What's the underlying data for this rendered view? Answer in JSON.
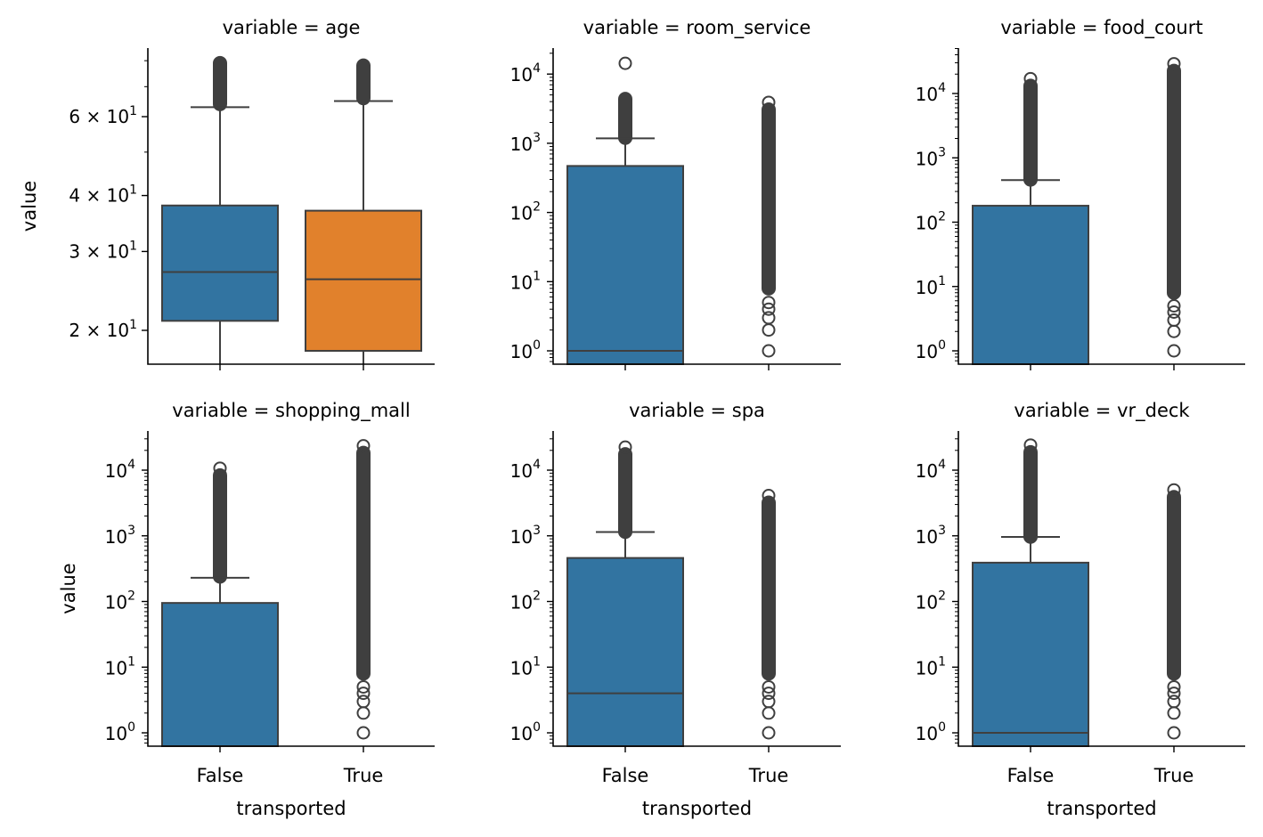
{
  "figure": {
    "xlabel": "transported",
    "ylabel": "value",
    "categories": [
      "False",
      "True"
    ],
    "palette": {
      "False": "#3274a1",
      "True": "#e1812c",
      "outline": "#3f3f3f"
    }
  },
  "chart_data": [
    {
      "type": "box",
      "title": "variable = age",
      "yscale": "log",
      "ylabel": "value",
      "xlabel": "",
      "categories": [
        "False",
        "True"
      ],
      "ytick_labels": [
        "2 × 10¹",
        "3 × 10¹",
        "4 × 10¹",
        "6 × 10¹"
      ],
      "ylim": [
        17,
        82
      ],
      "series": [
        {
          "name": "False",
          "color": "#3274a1",
          "q1": 21,
          "median": 27,
          "q3": 38,
          "whisker_low": 17,
          "whisker_high": 63,
          "fliers_range": [
            64,
            79
          ]
        },
        {
          "name": "True",
          "color": "#e1812c",
          "q1": 18,
          "median": 26,
          "q3": 37,
          "whisker_low": 17,
          "whisker_high": 65,
          "fliers_range": [
            66,
            78
          ]
        }
      ]
    },
    {
      "type": "box",
      "title": "variable = room_service",
      "yscale": "log",
      "categories": [
        "False",
        "True"
      ],
      "ytick_labels": [
        "10⁰",
        "10¹",
        "10²",
        "10³",
        "10⁴"
      ],
      "ylim": [
        0.6,
        22000
      ],
      "series": [
        {
          "name": "False",
          "color": "#3274a1",
          "q1": 0,
          "median": 1,
          "q3": 470,
          "whisker_high": 1180,
          "fliers_range": [
            1200,
            14300
          ]
        },
        {
          "name": "True",
          "color": "#e1812c",
          "q1": 0,
          "median": 0,
          "q3": 0,
          "whisker_high": 0,
          "fliers_range": [
            1,
            3900
          ]
        }
      ]
    },
    {
      "type": "box",
      "title": "variable = food_court",
      "yscale": "log",
      "categories": [
        "False",
        "True"
      ],
      "ytick_labels": [
        "10⁰",
        "10¹",
        "10²",
        "10³",
        "10⁴"
      ],
      "ylim": [
        0.6,
        50000
      ],
      "series": [
        {
          "name": "False",
          "color": "#3274a1",
          "q1": 0,
          "median": 0,
          "q3": 180,
          "whisker_high": 450,
          "fliers_range": [
            460,
            17000
          ]
        },
        {
          "name": "True",
          "color": "#e1812c",
          "q1": 0,
          "median": 0,
          "q3": 0,
          "whisker_high": 0,
          "fliers_range": [
            1,
            29000
          ]
        }
      ]
    },
    {
      "type": "box",
      "title": "variable = shopping_mall",
      "yscale": "log",
      "ylabel": "value",
      "xlabel": "transported",
      "categories": [
        "False",
        "True"
      ],
      "ytick_labels": [
        "10⁰",
        "10¹",
        "10²",
        "10³",
        "10⁴"
      ],
      "ylim": [
        0.6,
        35000
      ],
      "series": [
        {
          "name": "False",
          "color": "#3274a1",
          "q1": 0,
          "median": 0,
          "q3": 95,
          "whisker_high": 230,
          "fliers_range": [
            240,
            10700
          ]
        },
        {
          "name": "True",
          "color": "#e1812c",
          "q1": 0,
          "median": 0,
          "q3": 0,
          "whisker_high": 0,
          "fliers_range": [
            1,
            23500
          ]
        }
      ]
    },
    {
      "type": "box",
      "title": "variable = spa",
      "yscale": "log",
      "xlabel": "transported",
      "categories": [
        "False",
        "True"
      ],
      "ytick_labels": [
        "10⁰",
        "10¹",
        "10²",
        "10³",
        "10⁴"
      ],
      "ylim": [
        0.6,
        35000
      ],
      "series": [
        {
          "name": "False",
          "color": "#3274a1",
          "q1": 0,
          "median": 4,
          "q3": 460,
          "whisker_high": 1140,
          "fliers_range": [
            1150,
            22400
          ]
        },
        {
          "name": "True",
          "color": "#e1812c",
          "q1": 0,
          "median": 0,
          "q3": 0,
          "whisker_high": 0,
          "fliers_range": [
            1,
            4100
          ]
        }
      ]
    },
    {
      "type": "box",
      "title": "variable = vr_deck",
      "yscale": "log",
      "xlabel": "transported",
      "categories": [
        "False",
        "True"
      ],
      "ytick_labels": [
        "10⁰",
        "10¹",
        "10²",
        "10³",
        "10⁴"
      ],
      "ylim": [
        0.6,
        35000
      ],
      "series": [
        {
          "name": "False",
          "color": "#3274a1",
          "q1": 0,
          "median": 1,
          "q3": 390,
          "whisker_high": 960,
          "fliers_range": [
            970,
            24100
          ]
        },
        {
          "name": "True",
          "color": "#e1812c",
          "q1": 0,
          "median": 0,
          "q3": 0,
          "whisker_high": 0,
          "fliers_range": [
            1,
            5000
          ]
        }
      ]
    }
  ]
}
